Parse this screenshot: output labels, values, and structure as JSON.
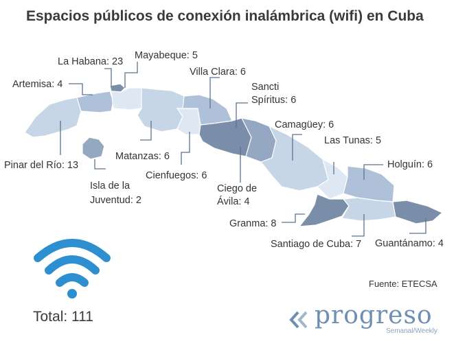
{
  "title": "Espacios públicos de conexión inalámbrica (wifi) en Cuba",
  "colors": {
    "lightest": "#dde8f3",
    "light": "#c7d6e7",
    "medium": "#aec1d8",
    "dark": "#94a8c1",
    "darkest": "#7a8ea9",
    "wifi_icon": "#2d8fd0",
    "leader_line": "#5a7490"
  },
  "provinces": [
    {
      "name": "Pinar del Río",
      "count": "13",
      "label": "Pinar del Río: 13"
    },
    {
      "name": "Artemisa",
      "count": "4",
      "label": "Artemisa: 4"
    },
    {
      "name": "La Habana",
      "count": "23",
      "label": "La Habana: 23"
    },
    {
      "name": "Mayabeque",
      "count": "5",
      "label": "Mayabeque: 5"
    },
    {
      "name": "Matanzas",
      "count": "6",
      "label": "Matanzas: 6"
    },
    {
      "name": "Cienfuegos",
      "count": "6",
      "label": "Cienfuegos: 6"
    },
    {
      "name": "Villa Clara",
      "count": "6",
      "label": "Villa Clara: 6"
    },
    {
      "name": "Sancti Spíritus",
      "count": "6",
      "label_line1": "Sancti",
      "label_line2": "Spíritus: 6"
    },
    {
      "name": "Ciego de Ávila",
      "count": "4",
      "label_line1": "Ciego de",
      "label_line2": "Ávila: 4"
    },
    {
      "name": "Camagüey",
      "count": "6",
      "label": "Camagüey: 6"
    },
    {
      "name": "Las Tunas",
      "count": "5",
      "label": "Las Tunas: 5"
    },
    {
      "name": "Holguín",
      "count": "6",
      "label": "Holguín: 6"
    },
    {
      "name": "Granma",
      "count": "8",
      "label": "Granma: 8"
    },
    {
      "name": "Santiago de Cuba",
      "count": "7",
      "label": "Santiago de Cuba: 7"
    },
    {
      "name": "Guantánamo",
      "count": "4",
      "label": "Guantánamo: 4"
    },
    {
      "name": "Isla de la Juventud",
      "count": "2",
      "label_line1": "Isla de la",
      "label_line2": "Juventud: 2"
    }
  ],
  "total": "Total: 111",
  "source": "Fuente: ETECSA",
  "logo": {
    "word": "progreso",
    "sub": "Semanal/Weekly"
  }
}
